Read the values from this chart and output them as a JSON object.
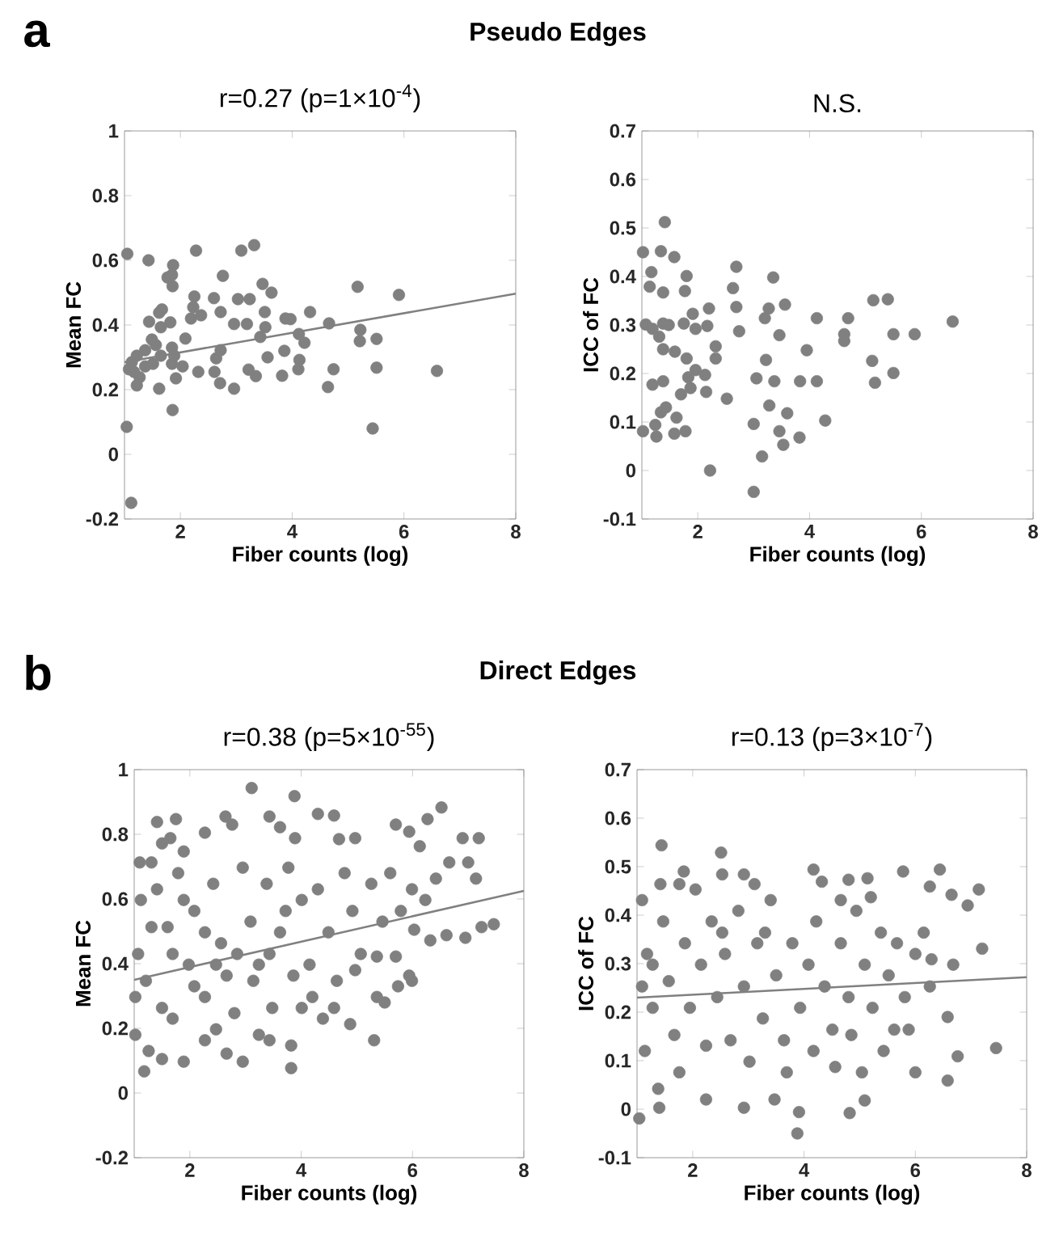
{
  "chart_data": [
    {
      "type": "scatter",
      "title": "r=0.27 (p=1×10$^{-4}$)",
      "xlabel": "Fiber counts (log)",
      "ylabel": "Mean FC",
      "annotations": [
        "a",
        "Pseudo Edges"
      ],
      "xlim": [
        1,
        8
      ],
      "xticks": [
        2,
        4,
        6,
        8
      ],
      "ylim": [
        -0.2,
        1
      ],
      "yticks": [
        -0.2,
        0,
        0.2,
        0.4,
        0.6,
        0.8,
        1
      ],
      "series": [
        {
          "marker": "circle",
          "color": "#808080",
          "x": [
            1.05,
            1.43,
            1.87,
            1.85,
            1.77,
            1.86,
            2.28,
            3.09,
            3.32,
            2.76,
            3.47,
            3.63,
            3.03,
            3.24,
            2.6,
            2.25,
            2.23,
            2.19,
            2.37,
            2.72,
            3.51,
            3.88,
            3.97,
            4.32,
            4.66,
            5.17,
            5.91,
            5.22,
            5.21,
            5.51,
            5.51,
            6.59,
            5.44,
            1.04,
            1.12,
            1.86,
            1.62,
            1.92,
            2.32,
            2.71,
            2.96,
            2.61,
            2.64,
            2.96,
            3.19,
            3.22,
            3.35,
            3.56,
            3.43,
            3.52,
            3.82,
            3.86,
            4.13,
            4.11,
            4.22,
            4.12,
            4.64,
            4.74,
            1.67,
            1.62,
            1.44,
            1.65,
            1.82,
            1.49,
            1.56,
            1.37,
            1.22,
            1.13,
            1.08,
            1.17,
            1.27,
            1.22,
            1.37,
            1.51,
            1.65,
            1.85,
            1.89,
            1.85,
            2.04,
            2.09,
            2.72
          ],
          "values": [
            0.62,
            0.6,
            0.585,
            0.555,
            0.547,
            0.52,
            0.63,
            0.63,
            0.647,
            0.552,
            0.527,
            0.5,
            0.48,
            0.48,
            0.483,
            0.488,
            0.455,
            0.42,
            0.43,
            0.44,
            0.44,
            0.42,
            0.418,
            0.44,
            0.405,
            0.518,
            0.493,
            0.385,
            0.35,
            0.357,
            0.268,
            0.258,
            0.08,
            0.085,
            -0.15,
            0.137,
            0.203,
            0.235,
            0.255,
            0.22,
            0.203,
            0.255,
            0.297,
            0.403,
            0.403,
            0.262,
            0.242,
            0.3,
            0.363,
            0.393,
            0.243,
            0.32,
            0.292,
            0.263,
            0.345,
            0.372,
            0.208,
            0.263,
            0.448,
            0.438,
            0.41,
            0.393,
            0.408,
            0.355,
            0.338,
            0.322,
            0.305,
            0.285,
            0.263,
            0.255,
            0.238,
            0.213,
            0.272,
            0.28,
            0.305,
            0.33,
            0.305,
            0.28,
            0.272,
            0.358,
            0.322
          ]
        },
        {
          "type": "line",
          "color": "#808080",
          "x": [
            1,
            8
          ],
          "values": [
            0.285,
            0.497
          ]
        }
      ]
    },
    {
      "type": "scatter",
      "title": "N.S.",
      "xlabel": "Fiber counts (log)",
      "ylabel": "ICC of FC",
      "xlim": [
        1,
        8
      ],
      "xticks": [
        2,
        4,
        6,
        8
      ],
      "ylim": [
        -0.1,
        0.7
      ],
      "yticks": [
        -0.1,
        0,
        0.1,
        0.2,
        0.3,
        0.4,
        0.5,
        0.6,
        0.7
      ],
      "series": [
        {
          "marker": "circle",
          "color": "#808080",
          "x": [
            1.02,
            1.41,
            1.34,
            1.58,
            1.17,
            1.14,
            1.38,
            1.8,
            1.77,
            1.07,
            1.19,
            1.38,
            1.48,
            1.31,
            1.38,
            1.59,
            1.75,
            1.91,
            1.96,
            2.2,
            2.17,
            1.8,
            1.96,
            2.13,
            1.83,
            1.87,
            1.7,
            1.19,
            1.38,
            2.15,
            2.32,
            2.32,
            2.52,
            1.43,
            1.34,
            1.62,
            1.02,
            1.26,
            1.24,
            1.58,
            1.78,
            2.22,
            2.69,
            2.63,
            2.69,
            2.74,
            3.35,
            3.27,
            3.2,
            3.56,
            3.46,
            3.22,
            3.05,
            3.37,
            3.0,
            3.28,
            3.6,
            3.46,
            3.53,
            3.82,
            3.15,
            3.0,
            3.95,
            3.83,
            4.13,
            4.13,
            4.28,
            4.62,
            4.69,
            4.62,
            5.14,
            5.4,
            5.5,
            5.88,
            6.56,
            5.12,
            5.17,
            5.5
          ],
          "values": [
            0.45,
            0.512,
            0.452,
            0.44,
            0.409,
            0.379,
            0.367,
            0.401,
            0.37,
            0.301,
            0.292,
            0.303,
            0.3,
            0.276,
            0.25,
            0.245,
            0.303,
            0.323,
            0.292,
            0.334,
            0.298,
            0.231,
            0.207,
            0.197,
            0.192,
            0.17,
            0.157,
            0.177,
            0.184,
            0.162,
            0.231,
            0.256,
            0.148,
            0.13,
            0.12,
            0.109,
            0.081,
            0.07,
            0.094,
            0.076,
            0.081,
            0.0,
            0.42,
            0.376,
            0.337,
            0.287,
            0.398,
            0.334,
            0.314,
            0.342,
            0.279,
            0.228,
            0.19,
            0.184,
            0.096,
            0.134,
            0.118,
            0.081,
            0.053,
            0.068,
            0.029,
            -0.044,
            0.248,
            0.184,
            0.314,
            0.184,
            0.103,
            0.281,
            0.314,
            0.267,
            0.351,
            0.353,
            0.281,
            0.281,
            0.307,
            0.226,
            0.181,
            0.201
          ]
        }
      ]
    },
    {
      "type": "scatter",
      "title": "r=0.38 (p=5×10$^{-55}$)",
      "xlabel": "Fiber counts (log)",
      "ylabel": "Mean FC",
      "annotations": [
        "b",
        "Direct Edges"
      ],
      "xlim": [
        1,
        8
      ],
      "xticks": [
        2,
        4,
        6,
        8
      ],
      "ylim": [
        -0.2,
        1
      ],
      "yticks": [
        -0.2,
        0,
        0.2,
        0.4,
        0.6,
        0.8,
        1
      ],
      "series": [
        {
          "marker": "circle",
          "color": "#808080",
          "x": [
            1.18,
            1.41,
            1.75,
            1.5,
            1.1,
            1.31,
            1.65,
            1.89,
            2.27,
            2.64,
            2.76,
            3.11,
            3.43,
            3.88,
            3.62,
            3.89,
            4.3,
            4.59,
            4.68,
            4.97,
            5.7,
            5.94,
            6.27,
            6.52,
            6.13,
            6.9,
            7.19,
            6.66,
            7.14,
            7.0,
            7.46,
            7.24,
            6.95,
            6.61,
            6.32,
            6.03,
            5.99,
            5.74,
            5.7,
            5.36,
            5.36,
            5.5,
            5.31,
            4.88,
            4.39,
            4.01,
            3.82,
            3.82,
            3.43,
            2.95,
            2.66,
            2.27,
            1.89,
            1.5,
            1.26,
            1.02,
            1.07,
            1.12,
            1.21,
            1.5,
            1.6,
            1.79,
            1.98,
            2.08,
            2.27,
            2.42,
            2.56,
            2.66,
            2.8,
            2.95,
            3.09,
            3.24,
            3.38,
            3.48,
            3.62,
            3.77,
            3.86,
            4.01,
            4.15,
            4.3,
            4.49,
            4.64,
            4.78,
            4.92,
            5.07,
            5.26,
            5.46,
            5.6,
            5.79,
            5.99,
            6.23,
            6.42,
            1.02,
            1.31,
            1.69,
            2.08,
            2.47,
            2.85,
            3.14,
            3.43,
            3.72,
            1.41,
            1.89,
            2.27,
            4.59,
            4.2,
            4.97,
            5.94,
            3.24,
            2.47,
            1.69
          ],
          "values": [
            0.067,
            0.838,
            0.847,
            0.772,
            0.713,
            0.713,
            0.788,
            0.747,
            0.805,
            0.855,
            0.83,
            0.943,
            0.855,
            0.918,
            0.822,
            0.788,
            0.863,
            0.858,
            0.785,
            0.788,
            0.83,
            0.808,
            0.847,
            0.883,
            0.763,
            0.788,
            0.788,
            0.713,
            0.663,
            0.713,
            0.522,
            0.513,
            0.48,
            0.488,
            0.472,
            0.505,
            0.347,
            0.33,
            0.422,
            0.422,
            0.297,
            0.28,
            0.163,
            0.213,
            0.23,
            0.263,
            0.147,
            0.077,
            0.163,
            0.097,
            0.122,
            0.163,
            0.097,
            0.105,
            0.13,
            0.18,
            0.43,
            0.597,
            0.347,
            0.263,
            0.513,
            0.68,
            0.397,
            0.563,
            0.297,
            0.647,
            0.463,
            0.363,
            0.247,
            0.697,
            0.53,
            0.397,
            0.647,
            0.263,
            0.497,
            0.697,
            0.363,
            0.597,
            0.397,
            0.63,
            0.497,
            0.347,
            0.68,
            0.563,
            0.43,
            0.647,
            0.53,
            0.68,
            0.563,
            0.63,
            0.597,
            0.663,
            0.297,
            0.513,
            0.43,
            0.33,
            0.397,
            0.43,
            0.347,
            0.43,
            0.563,
            0.63,
            0.597,
            0.497,
            0.263,
            0.297,
            0.38,
            0.363,
            0.18,
            0.197,
            0.23
          ]
        },
        {
          "type": "line",
          "color": "#808080",
          "x": [
            1,
            8
          ],
          "values": [
            0.35,
            0.625
          ]
        }
      ]
    },
    {
      "type": "scatter",
      "title": "r=0.13 (p=3×10$^{-7}$)",
      "xlabel": "Fiber counts (log)",
      "ylabel": "ICC of FC",
      "xlim": [
        1,
        8
      ],
      "xticks": [
        2,
        4,
        6,
        8
      ],
      "ylim": [
        -0.1,
        0.7
      ],
      "yticks": [
        -0.1,
        0,
        0.1,
        0.2,
        0.3,
        0.4,
        0.5,
        0.6,
        0.7
      ],
      "series": [
        {
          "marker": "circle",
          "color": "#808080",
          "x": [
            1.44,
            2.51,
            1.84,
            2.53,
            2.92,
            4.17,
            4.32,
            4.8,
            5.2,
            5.78,
            6.44,
            6.26,
            6.65,
            7.14,
            6.94,
            7.2,
            6.68,
            7.45,
            6.76,
            6.58,
            6.58,
            6.26,
            5.88,
            6.0,
            1.04,
            1.4,
            2.24,
            2.92,
            3.47,
            3.91,
            3.88,
            4.82,
            5.09,
            4.56,
            4.85,
            5.43,
            5.62,
            5.04,
            4.17,
            3.69,
            1.09,
            1.18,
            1.28,
            1.14,
            1.38,
            1.47,
            1.57,
            1.67,
            1.76,
            1.86,
            1.95,
            2.05,
            2.15,
            2.24,
            2.34,
            2.44,
            2.58,
            2.68,
            2.82,
            2.92,
            3.02,
            3.16,
            3.26,
            3.4,
            3.5,
            3.64,
            3.79,
            3.93,
            4.08,
            4.22,
            4.37,
            4.51,
            4.66,
            4.8,
            4.94,
            5.09,
            5.23,
            5.38,
            5.52,
            5.67,
            5.81,
            6.0,
            6.15,
            6.29,
            1.09,
            1.76,
            1.42,
            3.11,
            4.66,
            5.14,
            1.28,
            2.53,
            3.3
          ],
          "values": [
            0.544,
            0.529,
            0.49,
            0.484,
            0.484,
            0.494,
            0.469,
            0.473,
            0.437,
            0.49,
            0.494,
            0.459,
            0.442,
            0.453,
            0.42,
            0.331,
            0.298,
            0.126,
            0.109,
            0.059,
            0.19,
            0.253,
            0.164,
            0.076,
            -0.019,
            0.003,
            0.02,
            0.003,
            0.02,
            -0.006,
            -0.05,
            -0.008,
            0.018,
            0.087,
            0.153,
            0.12,
            0.164,
            0.076,
            0.12,
            0.076,
            0.431,
            0.32,
            0.209,
            0.12,
            0.042,
            0.387,
            0.264,
            0.153,
            0.076,
            0.342,
            0.209,
            0.453,
            0.298,
            0.131,
            0.387,
            0.231,
            0.32,
            0.142,
            0.409,
            0.253,
            0.098,
            0.342,
            0.187,
            0.431,
            0.276,
            0.142,
            0.342,
            0.209,
            0.298,
            0.387,
            0.253,
            0.164,
            0.342,
            0.231,
            0.409,
            0.298,
            0.209,
            0.364,
            0.276,
            0.342,
            0.231,
            0.32,
            0.364,
            0.309,
            0.253,
            0.464,
            0.464,
            0.464,
            0.431,
            0.476,
            0.298,
            0.364,
            0.364
          ]
        },
        {
          "type": "line",
          "color": "#808080",
          "x": [
            1,
            8
          ],
          "values": [
            0.23,
            0.272
          ]
        }
      ]
    }
  ]
}
